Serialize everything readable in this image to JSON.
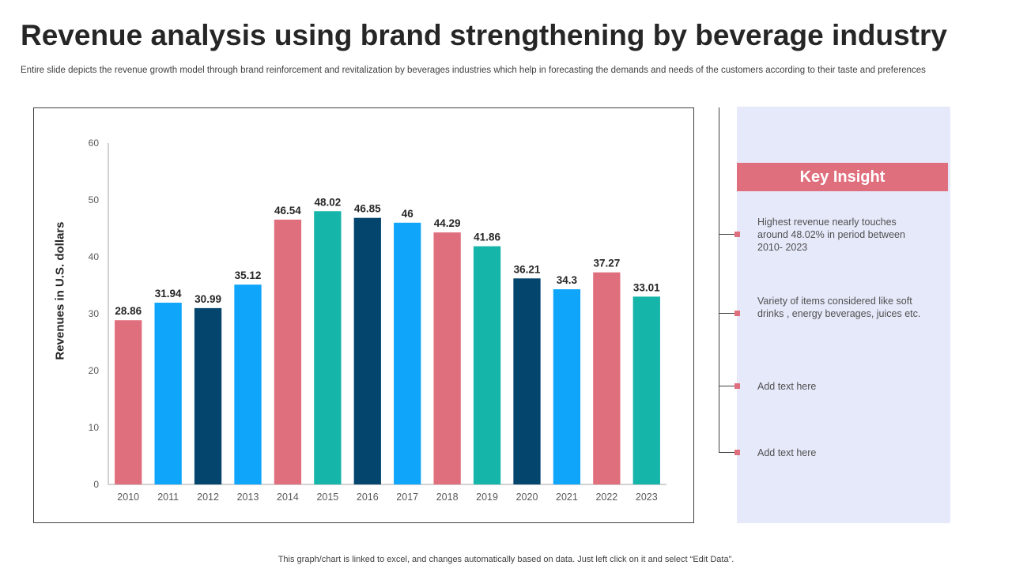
{
  "header": {
    "title": "Revenue analysis using brand strengthening by beverage industry",
    "subtitle": "Entire slide depicts the revenue growth model through brand reinforcement and revitalization by beverages industries which help in forecasting the demands and needs of the customers according to their taste and preferences"
  },
  "chart_data": {
    "type": "bar",
    "categories": [
      "2010",
      "2011",
      "2012",
      "2013",
      "2014",
      "2015",
      "2016",
      "2017",
      "2018",
      "2019",
      "2020",
      "2021",
      "2022",
      "2023"
    ],
    "values": [
      28.86,
      31.94,
      30.99,
      35.12,
      46.54,
      48.02,
      46.85,
      46,
      44.29,
      41.86,
      36.21,
      34.3,
      37.27,
      33.01
    ],
    "value_labels": [
      "28.86",
      "31.94",
      "30.99",
      "35.12",
      "46.54",
      "48.02",
      "46.85",
      "46",
      "44.29",
      "41.86",
      "36.21",
      "34.3",
      "37.27",
      "33.01"
    ],
    "bar_colors": [
      "#e06f7e",
      "#0ea5fb",
      "#03456d",
      "#0ea5fb",
      "#e06f7e",
      "#15b5aa",
      "#03456d",
      "#0ea5fb",
      "#e06f7e",
      "#15b5aa",
      "#03456d",
      "#0ea5fb",
      "#e06f7e",
      "#15b5aa"
    ],
    "ylabel": "Revenues in U.S. dollars",
    "ylim": [
      0,
      60
    ],
    "yticks": [
      0,
      10,
      20,
      30,
      40,
      50,
      60
    ],
    "grid": false,
    "legend": "none"
  },
  "insights": {
    "header": "Key Insight",
    "items": [
      "Highest revenue nearly touches around 48.02% in period between 2010- 2023",
      "Variety of items considered like soft drinks , energy beverages, juices etc.",
      "Add text here",
      "Add text here"
    ]
  },
  "footer": {
    "note": "This graph/chart is linked to excel, and changes automatically based on data. Just left click on it and select “Edit Data”."
  },
  "colors": {
    "accent": "#e06f7e",
    "panel_bg": "#e6e9fa"
  }
}
